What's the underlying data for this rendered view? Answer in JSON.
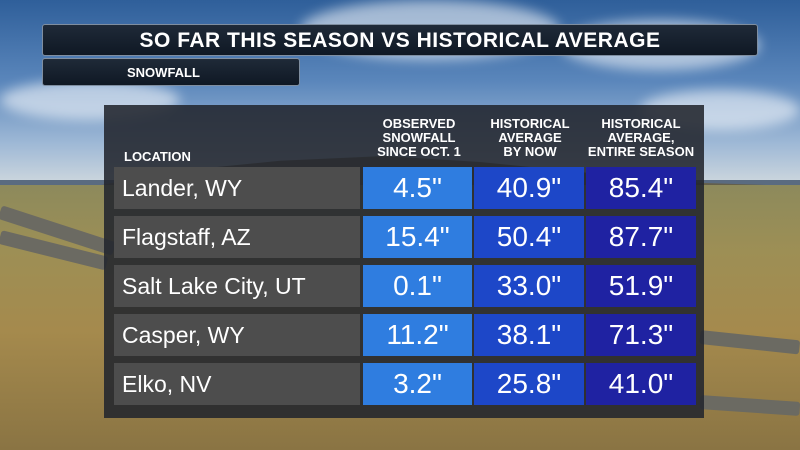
{
  "title": "SO FAR THIS SEASON VS HISTORICAL AVERAGE",
  "subtitle": "SNOWFALL",
  "chart_data": {
    "type": "table",
    "columns": [
      "LOCATION",
      "OBSERVED SNOWFALL SINCE OCT. 1",
      "HISTORICAL AVERAGE BY NOW",
      "HISTORICAL AVERAGE, ENTIRE SEASON"
    ],
    "header_lines": {
      "col1": [
        "OBSERVED",
        "SNOWFALL",
        "SINCE OCT. 1"
      ],
      "col2": [
        "HISTORICAL",
        "AVERAGE",
        "BY NOW"
      ],
      "col3": [
        "HISTORICAL",
        "AVERAGE,",
        "ENTIRE SEASON"
      ]
    },
    "rows": [
      {
        "location": "Lander, WY",
        "observed": "4.5\"",
        "avg_by_now": "40.9\"",
        "avg_season": "85.4\""
      },
      {
        "location": "Flagstaff, AZ",
        "observed": "15.4\"",
        "avg_by_now": "50.4\"",
        "avg_season": "87.7\""
      },
      {
        "location": "Salt Lake City, UT",
        "observed": "0.1\"",
        "avg_by_now": "33.0\"",
        "avg_season": "51.9\""
      },
      {
        "location": "Casper, WY",
        "observed": "11.2\"",
        "avg_by_now": "38.1\"",
        "avg_season": "71.3\""
      },
      {
        "location": "Elko, NV",
        "observed": "3.2\"",
        "avg_by_now": "25.8\"",
        "avg_season": "41.0\""
      }
    ]
  },
  "colors": {
    "observed": "#2f7de0",
    "avg_by_now": "#1d47c8",
    "avg_season": "#1f22a2",
    "location": "#4d4d4d"
  }
}
